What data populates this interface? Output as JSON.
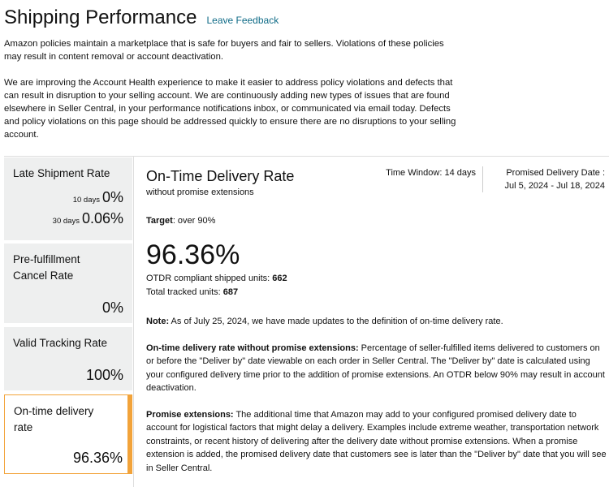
{
  "header": {
    "title": "Shipping Performance",
    "link": "Leave Feedback"
  },
  "intro": [
    "Amazon policies maintain a marketplace that is safe for buyers and fair to sellers. Violations of these policies may result in content removal or account deactivation.",
    "We are improving the Account Health experience to make it easier to address policy violations and defects that can result in disruption to your selling account. We are continuously adding new types of issues that are found elsewhere in Seller Central, in your performance notifications inbox, or communicated via email today. Defects and policy violations on this page should be addressed quickly to ensure there are no disruptions to your selling account."
  ],
  "sidebar": [
    {
      "label": "Late Shipment Rate",
      "rows": [
        {
          "period": "10 days",
          "value": "0%"
        },
        {
          "period": "30 days",
          "value": "0.06%"
        }
      ]
    },
    {
      "label": "Pre-fulfillment Cancel Rate",
      "value": "0%"
    },
    {
      "label": "Valid Tracking Rate",
      "value": "100%"
    },
    {
      "label": "On-time delivery rate",
      "value": "96.36%"
    }
  ],
  "detail": {
    "title": "On-Time Delivery Rate",
    "subtitle": "without promise extensions",
    "time_window": "Time Window: 14 days",
    "date_range": "Promised Delivery Date : Jul 5, 2024 - Jul 18, 2024",
    "target": {
      "label": "Target",
      "text": ": over 90%"
    },
    "value": "96.36%",
    "compliant": {
      "label": "OTDR compliant shipped units: ",
      "value": 662
    },
    "total": {
      "label": "Total tracked units: ",
      "value": 687
    },
    "notes": [
      {
        "label": "Note:",
        "text": " As of July 25, 2024, we have made updates to the definition of on-time delivery rate."
      },
      {
        "label": "On-time delivery rate without promise extensions:",
        "text": " Percentage of seller-fulfilled items delivered to customers on or before the \"Deliver by\" date viewable on each order in Seller Central. The \"Deliver by\" date is calculated using your configured delivery time prior to the addition of promise extensions. An OTDR below 90% may result in account deactivation."
      },
      {
        "label": "Promise extensions:",
        "text": " The additional time that Amazon may add to your configured promised delivery date to account for logistical factors that might delay a delivery. Examples include extreme weather, transportation network constraints, or recent history of delivering after the delivery date without promise extensions. When a promise extension is added, the promised delivery date that customers see is later than the \"Deliver by\" date that you will see in Seller Central."
      }
    ]
  }
}
